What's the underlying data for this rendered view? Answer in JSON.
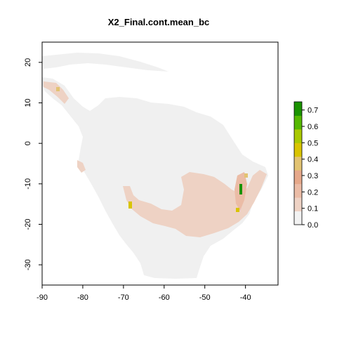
{
  "title": "X2_Final.cont.mean_bc",
  "chart_data": {
    "type": "heatmap",
    "title": "X2_Final.cont.mean_bc",
    "xlabel": "",
    "ylabel": "",
    "xlim": [
      -90,
      -32
    ],
    "ylim": [
      -35,
      25
    ],
    "x_ticks": [
      "-90",
      "-80",
      "-70",
      "-60",
      "-50",
      "-40"
    ],
    "y_ticks": [
      "20",
      "10",
      "0",
      "-10",
      "-20",
      "-30"
    ],
    "legend": {
      "placement": "right",
      "range": [
        0.0,
        0.75
      ],
      "ticks": [
        "0.7",
        "0.6",
        "0.5",
        "0.4",
        "0.3",
        "0.2",
        "0.1",
        "0.0"
      ],
      "colors": [
        "#f2f2f2",
        "#eed2c4",
        "#ebbca6",
        "#e6a88a",
        "#e2c372",
        "#d9c400",
        "#a9c900",
        "#55b800",
        "#1a9300"
      ]
    },
    "land_color": "#f0f0f0",
    "hotspots_max_value": 0.75
  }
}
